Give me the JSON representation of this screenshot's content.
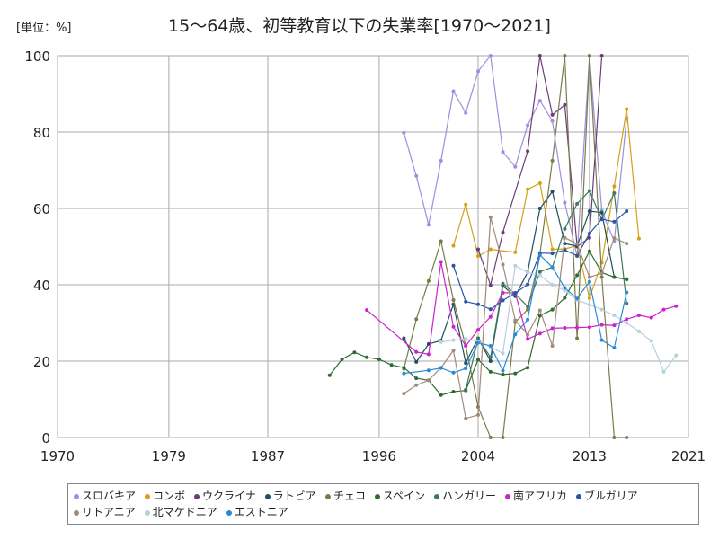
{
  "unit_label": "[単位：%]",
  "chart_data": {
    "type": "line",
    "title": "15～64歳、初等教育以下の失業率[1970～2021]",
    "x_ticks": [
      "1970",
      "1979",
      "1987",
      "1996",
      "2004",
      "2013",
      "2021"
    ],
    "y_ticks": [
      "0",
      "20",
      "40",
      "60",
      "80",
      "100"
    ],
    "xlim": [
      1970,
      2021
    ],
    "ylim": [
      0,
      100
    ],
    "grid": true,
    "legend_position": "bottom",
    "series": [
      {
        "name": "スロバキア",
        "color": "#9c8fe0",
        "points": [
          [
            1998,
            79.8
          ],
          [
            1999,
            68.5
          ],
          [
            2000,
            55.7
          ],
          [
            2001,
            72.5
          ],
          [
            2002,
            90.7
          ],
          [
            2003,
            85.0
          ],
          [
            2004,
            95.9
          ],
          [
            2005,
            100
          ],
          [
            2006,
            74.8
          ],
          [
            2007,
            70.9
          ],
          [
            2008,
            81.8
          ],
          [
            2009,
            88.2
          ],
          [
            2010,
            82.9
          ],
          [
            2011,
            61.5
          ],
          [
            2012,
            47.5
          ],
          [
            2013,
            100
          ],
          [
            2014,
            59.4
          ],
          [
            2015,
            51.4
          ],
          [
            2016,
            83.6
          ]
        ]
      },
      {
        "name": "コンボ",
        "color": "#d4a017",
        "points": [
          [
            2002,
            50.2
          ],
          [
            2003,
            61.0
          ],
          [
            2004,
            47.5
          ],
          [
            2005,
            49.3
          ],
          [
            2007,
            48.5
          ],
          [
            2008,
            65.0
          ],
          [
            2009,
            66.6
          ],
          [
            2010,
            49.3
          ],
          [
            2011,
            49.4
          ],
          [
            2012,
            50.2
          ],
          [
            2013,
            36.5
          ],
          [
            2014,
            45.8
          ],
          [
            2015,
            65.8
          ],
          [
            2016,
            86.0
          ],
          [
            2017,
            52.1
          ]
        ]
      },
      {
        "name": "ウクライナ",
        "color": "#6a3d7a",
        "points": [
          [
            2004,
            49.3
          ],
          [
            2005,
            39.9
          ],
          [
            2006,
            53.7
          ],
          [
            2008,
            75.0
          ],
          [
            2009,
            100
          ],
          [
            2010,
            84.5
          ],
          [
            2011,
            87.1
          ],
          [
            2012,
            50.0
          ],
          [
            2013,
            52.3
          ],
          [
            2014,
            100
          ]
        ]
      },
      {
        "name": "ラトビア",
        "color": "#1f4e5f",
        "points": [
          [
            1998,
            26.0
          ],
          [
            1999,
            19.8
          ],
          [
            2000,
            24.5
          ],
          [
            2001,
            25.4
          ],
          [
            2002,
            34.9
          ],
          [
            2003,
            19.5
          ],
          [
            2004,
            26.0
          ],
          [
            2005,
            20.0
          ],
          [
            2006,
            39.7
          ],
          [
            2007,
            37.0
          ],
          [
            2008,
            43.3
          ],
          [
            2009,
            60.0
          ],
          [
            2010,
            64.4
          ],
          [
            2011,
            50.8
          ],
          [
            2012,
            50.1
          ],
          [
            2013,
            59.3
          ],
          [
            2014,
            58.9
          ],
          [
            2015,
            42.0
          ],
          [
            2016,
            41.5
          ]
        ]
      },
      {
        "name": "チェコ",
        "color": "#7b7b4a",
        "points": [
          [
            1998,
            18.0
          ],
          [
            1999,
            31.0
          ],
          [
            2000,
            41.0
          ],
          [
            2001,
            51.4
          ],
          [
            2002,
            36.0
          ],
          [
            2003,
            24.0
          ],
          [
            2004,
            8.0
          ],
          [
            2005,
            0
          ],
          [
            2006,
            0
          ],
          [
            2007,
            30.2
          ],
          [
            2008,
            33.5
          ],
          [
            2009,
            48.1
          ],
          [
            2010,
            72.5
          ],
          [
            2011,
            100
          ],
          [
            2012,
            26.0
          ],
          [
            2013,
            100
          ],
          [
            2014,
            42.0
          ],
          [
            2015,
            0
          ],
          [
            2016,
            0
          ]
        ]
      },
      {
        "name": "スペイン",
        "color": "#2e6b2e",
        "points": [
          [
            1992,
            16.3
          ],
          [
            1993,
            20.5
          ],
          [
            1994,
            22.3
          ],
          [
            1995,
            21.0
          ],
          [
            1996,
            20.5
          ],
          [
            1997,
            19.0
          ],
          [
            1998,
            18.3
          ],
          [
            1999,
            15.5
          ],
          [
            2000,
            15.0
          ],
          [
            2001,
            11.1
          ],
          [
            2002,
            12.0
          ],
          [
            2003,
            12.3
          ],
          [
            2004,
            20.4
          ],
          [
            2005,
            17.2
          ],
          [
            2006,
            16.5
          ],
          [
            2007,
            16.8
          ],
          [
            2008,
            18.3
          ],
          [
            2009,
            31.9
          ],
          [
            2010,
            33.5
          ],
          [
            2011,
            36.6
          ],
          [
            2012,
            42.5
          ],
          [
            2013,
            48.8
          ],
          [
            2014,
            43.2
          ],
          [
            2015,
            42.0
          ],
          [
            2016,
            41.4
          ]
        ]
      },
      {
        "name": "ハンガリー",
        "color": "#3c7a5c",
        "points": [
          [
            2003,
            12.5
          ],
          [
            2004,
            26.0
          ],
          [
            2005,
            21.0
          ],
          [
            2006,
            40.3
          ],
          [
            2007,
            37.6
          ],
          [
            2008,
            34.3
          ],
          [
            2009,
            43.4
          ],
          [
            2010,
            44.6
          ],
          [
            2011,
            54.6
          ],
          [
            2012,
            61.2
          ],
          [
            2013,
            64.6
          ],
          [
            2014,
            57.1
          ],
          [
            2015,
            64.0
          ],
          [
            2016,
            35.1
          ]
        ]
      },
      {
        "name": "南アフリカ",
        "color": "#cc22cc",
        "points": [
          [
            1995,
            33.4
          ],
          [
            1999,
            22.4
          ],
          [
            2000,
            21.8
          ],
          [
            2001,
            46.0
          ],
          [
            2002,
            29.0
          ],
          [
            2003,
            24.0
          ],
          [
            2004,
            28.2
          ],
          [
            2005,
            31.6
          ],
          [
            2006,
            37.9
          ],
          [
            2007,
            37.9
          ],
          [
            2008,
            25.8
          ],
          [
            2009,
            27.2
          ],
          [
            2010,
            28.6
          ],
          [
            2011,
            28.7
          ],
          [
            2012,
            28.8
          ],
          [
            2013,
            28.9
          ],
          [
            2014,
            29.5
          ],
          [
            2015,
            29.4
          ],
          [
            2016,
            31.0
          ],
          [
            2017,
            32.0
          ],
          [
            2018,
            31.4
          ],
          [
            2019,
            33.5
          ],
          [
            2020,
            34.4
          ]
        ]
      },
      {
        "name": "ブルガリア",
        "color": "#2a54a6",
        "points": [
          [
            2002,
            45.0
          ],
          [
            2003,
            35.6
          ],
          [
            2004,
            34.9
          ],
          [
            2005,
            33.6
          ],
          [
            2006,
            35.9
          ],
          [
            2007,
            37.8
          ],
          [
            2008,
            40.1
          ],
          [
            2009,
            48.3
          ],
          [
            2010,
            48.2
          ],
          [
            2011,
            49.1
          ],
          [
            2012,
            47.6
          ],
          [
            2013,
            53.4
          ],
          [
            2014,
            57.2
          ],
          [
            2015,
            56.5
          ],
          [
            2016,
            59.3
          ]
        ]
      },
      {
        "name": "リトアニア",
        "color": "#a08a7a",
        "points": [
          [
            1998,
            11.5
          ],
          [
            1999,
            13.7
          ],
          [
            2000,
            15.0
          ],
          [
            2001,
            18.3
          ],
          [
            2002,
            22.8
          ],
          [
            2003,
            5.0
          ],
          [
            2004,
            5.9
          ],
          [
            2005,
            57.7
          ],
          [
            2006,
            45.3
          ],
          [
            2007,
            30.7
          ],
          [
            2008,
            26.9
          ],
          [
            2009,
            33.3
          ],
          [
            2010,
            24.0
          ],
          [
            2011,
            52.3
          ],
          [
            2012,
            50.7
          ],
          [
            2013,
            42.0
          ],
          [
            2014,
            43.0
          ],
          [
            2015,
            52.2
          ],
          [
            2016,
            50.8
          ]
        ]
      },
      {
        "name": "北マケドニア",
        "color": "#b8cfdc",
        "points": [
          [
            2001,
            25.0
          ],
          [
            2002,
            25.5
          ],
          [
            2003,
            25.8
          ],
          [
            2004,
            25.2
          ],
          [
            2005,
            23.8
          ],
          [
            2006,
            22.0
          ],
          [
            2007,
            45.0
          ],
          [
            2008,
            43.2
          ],
          [
            2009,
            42.5
          ],
          [
            2010,
            40.0
          ],
          [
            2011,
            38.5
          ],
          [
            2012,
            36.0
          ],
          [
            2013,
            34.8
          ],
          [
            2014,
            33.5
          ],
          [
            2015,
            32.0
          ],
          [
            2016,
            30.0
          ],
          [
            2017,
            27.8
          ],
          [
            2018,
            25.3
          ],
          [
            2019,
            17.2
          ],
          [
            2020,
            21.5
          ]
        ]
      },
      {
        "name": "エストニア",
        "color": "#2a8ad8",
        "points": [
          [
            1998,
            16.8
          ],
          [
            2000,
            17.6
          ],
          [
            2001,
            18.2
          ],
          [
            2002,
            17.0
          ],
          [
            2003,
            18.1
          ],
          [
            2004,
            24.8
          ],
          [
            2005,
            24.0
          ],
          [
            2006,
            17.5
          ],
          [
            2007,
            27.0
          ],
          [
            2008,
            30.9
          ],
          [
            2009,
            47.8
          ],
          [
            2010,
            44.6
          ],
          [
            2011,
            39.2
          ],
          [
            2012,
            36.4
          ],
          [
            2013,
            40.8
          ],
          [
            2014,
            25.5
          ],
          [
            2015,
            23.5
          ],
          [
            2016,
            38.0
          ]
        ]
      }
    ]
  }
}
